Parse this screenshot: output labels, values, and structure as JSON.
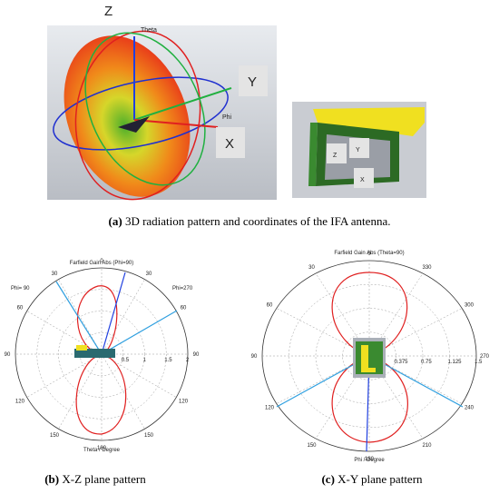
{
  "figure_a": {
    "axes": {
      "z": "Z",
      "theta": "Theta",
      "phi": "Phi",
      "y": "Y",
      "x": "X"
    },
    "inset": {
      "z": "Z",
      "y": "Y",
      "x": "X"
    },
    "caption_label": "(a)",
    "caption": "3D radiation pattern and coordinates of the IFA antenna."
  },
  "figure_b": {
    "title": "Farfield Gain Abs (Phi=90)",
    "left_label": "Phi= 90",
    "right_label": "Phi=270",
    "angle_labels": [
      "0",
      "30",
      "60",
      "90",
      "120",
      "150",
      "180",
      "150",
      "120",
      "90",
      "60",
      "30"
    ],
    "radial_labels": [
      "0.5",
      "1",
      "1.5",
      "2"
    ],
    "axis_title": "Theta / Degree",
    "caption_label": "(b)",
    "caption": "X-Z plane pattern"
  },
  "figure_c": {
    "title": "Farfield Gain Abs (Theta=90)",
    "angle_labels": [
      "0",
      "30",
      "60",
      "90",
      "120",
      "150",
      "180",
      "210",
      "240",
      "270",
      "300",
      "330"
    ],
    "radial_labels": [
      "0.375",
      "0.75",
      "1.125",
      "1.5"
    ],
    "axis_title": "Phi / Degree",
    "caption_label": "(c)",
    "caption": "X-Y plane pattern"
  }
}
